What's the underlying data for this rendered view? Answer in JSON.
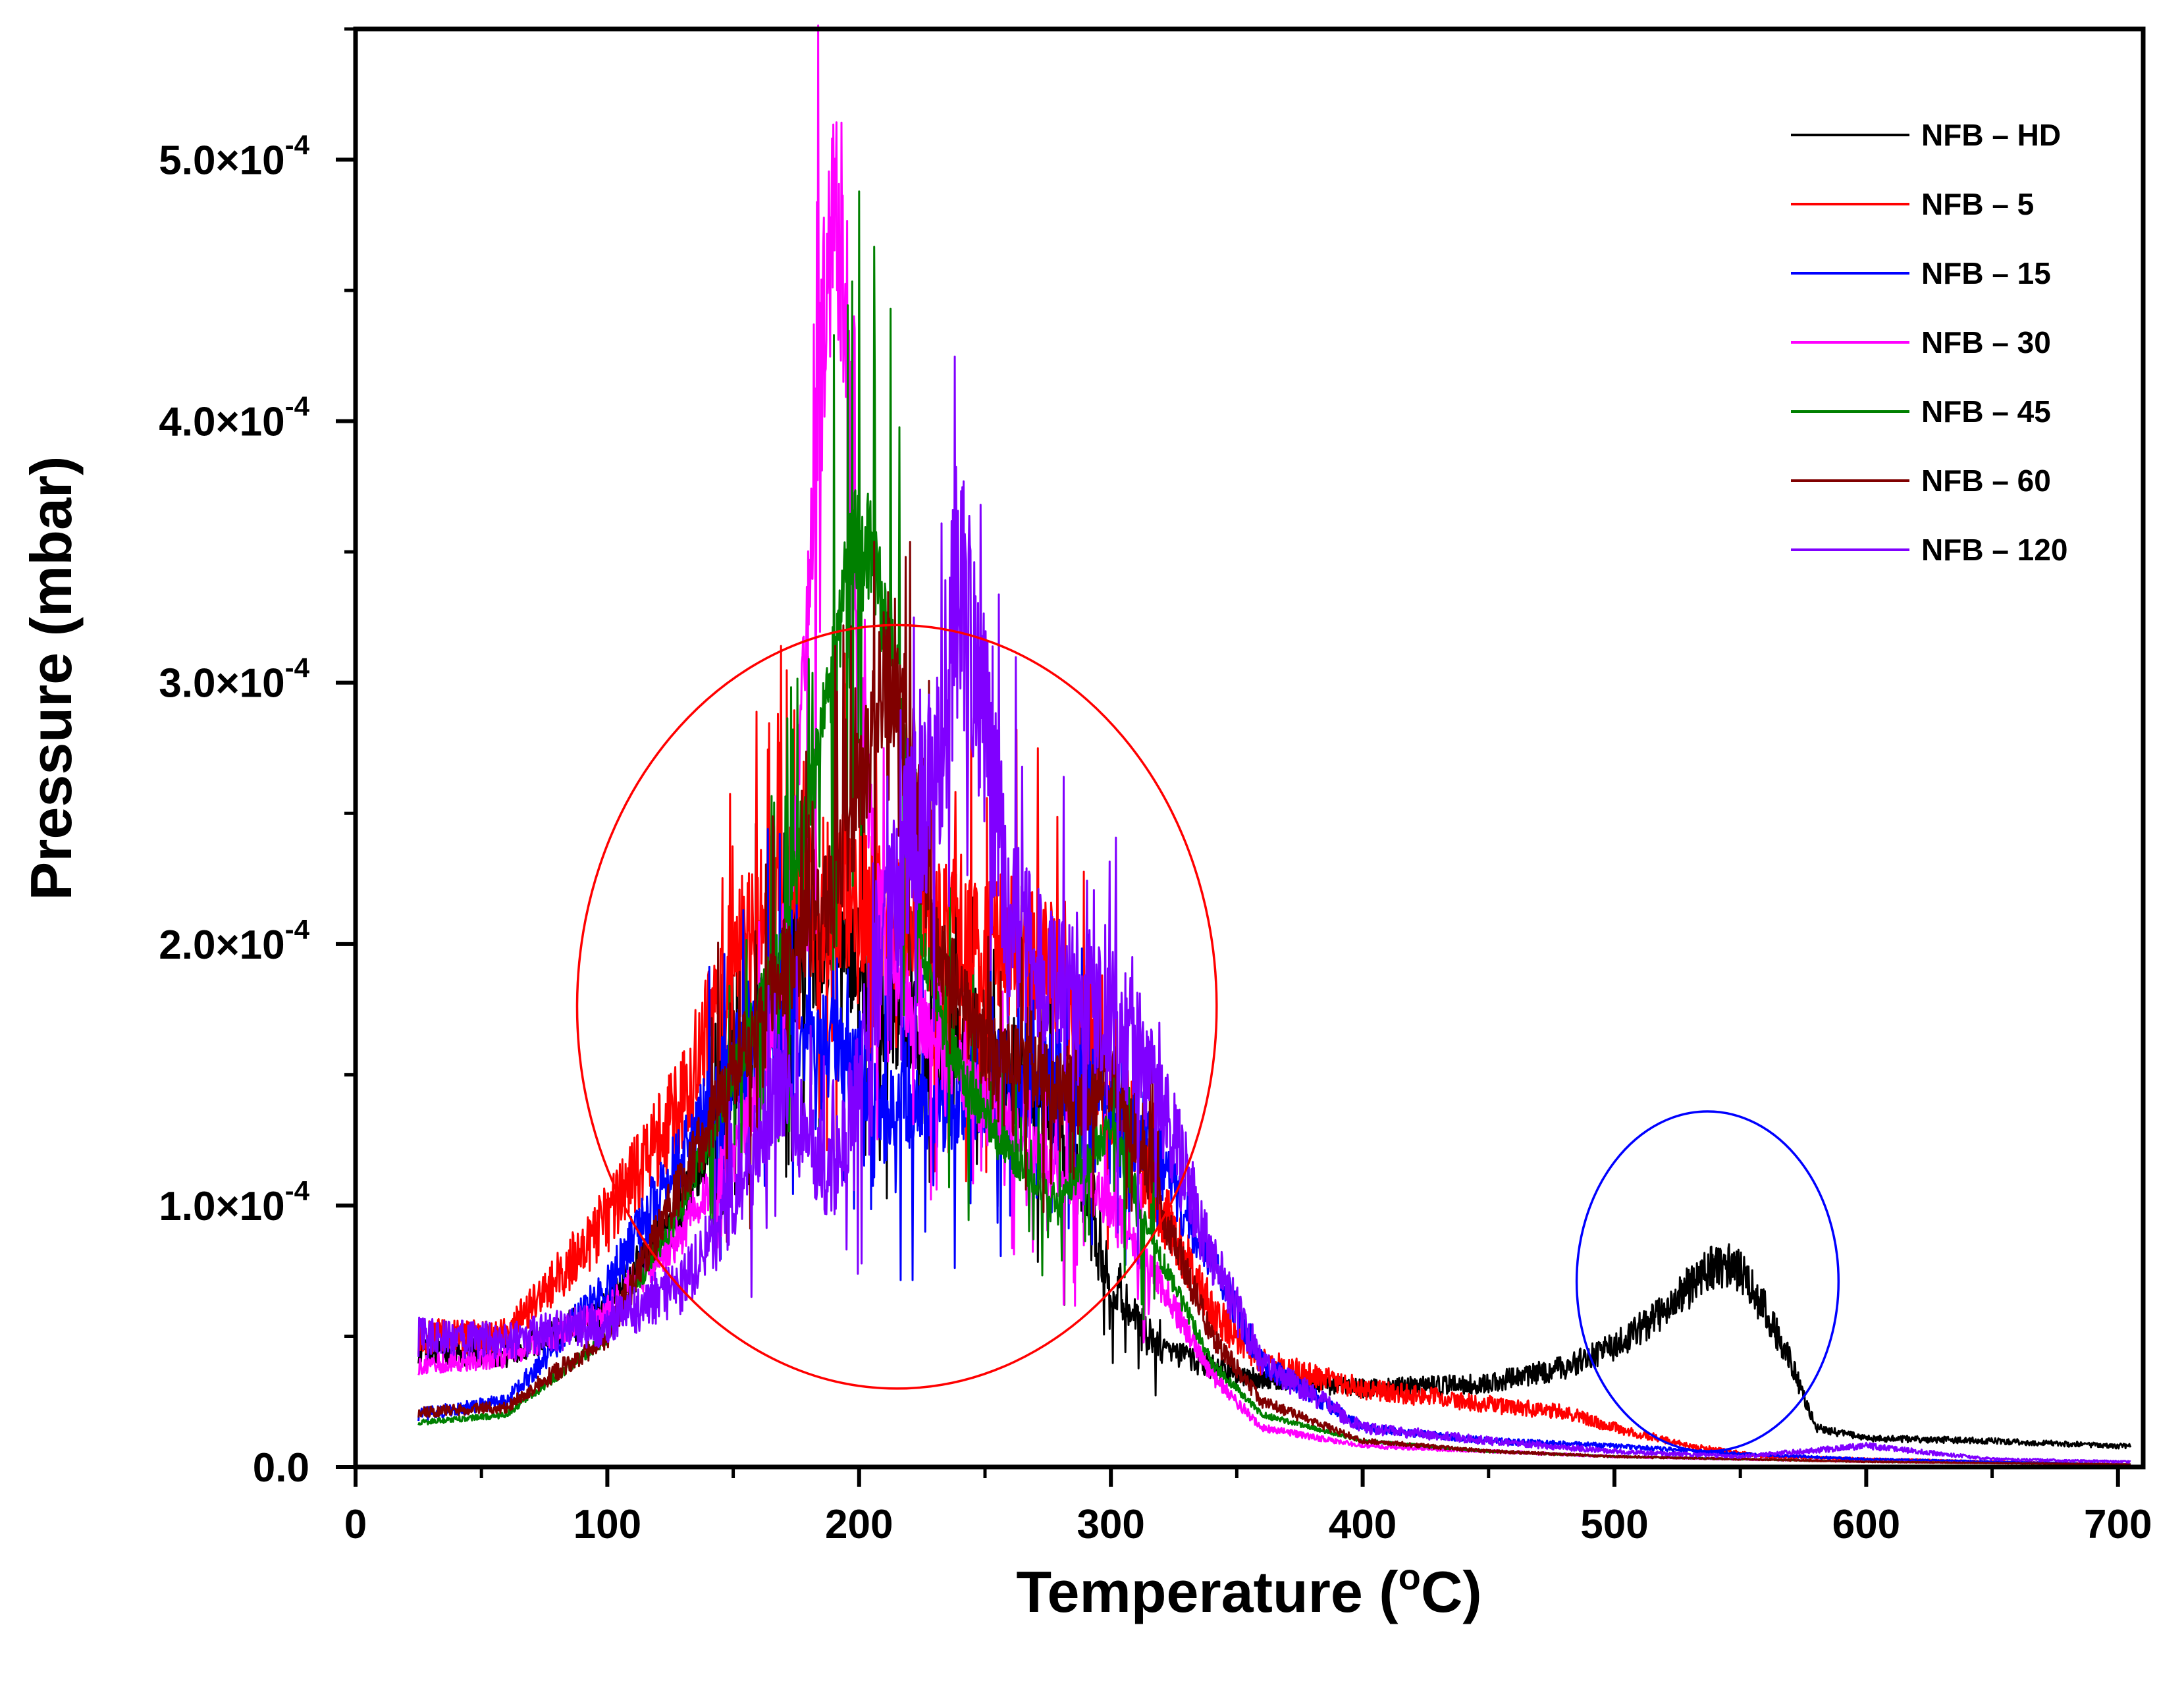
{
  "chart_data": {
    "type": "line",
    "title": "",
    "xlabel": "Temperature (",
    "xlabel_sup": "o",
    "xlabel_unit": "C)",
    "ylabel": "Pressure (mbar)",
    "xlim": [
      0,
      710
    ],
    "ylim": [
      0,
      0.00055
    ],
    "x_ticks": [
      0,
      100,
      200,
      300,
      400,
      500,
      600,
      700
    ],
    "x_tick_labels": [
      "0",
      "100",
      "200",
      "300",
      "400",
      "500",
      "600",
      "700"
    ],
    "y_ticks": [
      0,
      0.0001,
      0.0002,
      0.0003,
      0.0004,
      0.0005
    ],
    "y_tick_labels": [
      {
        "mantissa": "0.0",
        "exponent": ""
      },
      {
        "mantissa": "1.0×10",
        "exponent": "-4"
      },
      {
        "mantissa": "2.0×10",
        "exponent": "-4"
      },
      {
        "mantissa": "3.0×10",
        "exponent": "-4"
      },
      {
        "mantissa": "4.0×10",
        "exponent": "-4"
      },
      {
        "mantissa": "5.0×10",
        "exponent": "-4"
      }
    ],
    "legend_position": "top-right",
    "series": [
      {
        "name": "NFB – HD",
        "color": "#000000",
        "noise": 0.12,
        "x": [
          25,
          60,
          100,
          130,
          150,
          170,
          190,
          200,
          210,
          230,
          260,
          280,
          290,
          300,
          320,
          350,
          400,
          450,
          480,
          500,
          520,
          540,
          550,
          560,
          570,
          580,
          600,
          650,
          700,
          705
        ],
        "y": [
          4.5e-05,
          4.3e-05,
          6e-05,
          0.0001,
          0.00015,
          0.00019,
          0.0002,
          0.000195,
          0.000175,
          0.00016,
          0.00015,
          0.00013,
          0.0001,
          7e-05,
          4.5e-05,
          3.5e-05,
          3e-05,
          3.2e-05,
          3.8e-05,
          4.6e-05,
          6e-05,
          7.8e-05,
          7.5e-05,
          6e-05,
          4e-05,
          1.5e-05,
          1.1e-05,
          1e-05,
          8e-06,
          8e-06
        ]
      },
      {
        "name": "NFB – 5",
        "color": "#ff0000",
        "noise": 0.14,
        "x": [
          25,
          60,
          100,
          130,
          150,
          170,
          190,
          210,
          230,
          260,
          280,
          300,
          320,
          340,
          360,
          400,
          450,
          480,
          500,
          530,
          560,
          600,
          650,
          705
        ],
        "y": [
          5e-05,
          5e-05,
          9.5e-05,
          0.00014,
          0.000195,
          0.00022,
          0.00022,
          0.00021,
          0.000205,
          0.0002,
          0.000185,
          0.00014,
          0.0001,
          6e-05,
          4e-05,
          3e-05,
          2.4e-05,
          2.1e-05,
          1.5e-05,
          8e-06,
          4e-06,
          3e-06,
          2e-06,
          1e-06
        ]
      },
      {
        "name": "NFB – 15",
        "color": "#0000ff",
        "noise": 0.12,
        "x": [
          25,
          60,
          100,
          130,
          150,
          170,
          190,
          210,
          230,
          260,
          280,
          300,
          320,
          340,
          360,
          400,
          450,
          500,
          550,
          600,
          650,
          705
        ],
        "y": [
          2e-05,
          2.5e-05,
          7e-05,
          0.00012,
          0.000155,
          0.00017,
          0.00016,
          0.00014,
          0.000135,
          0.00014,
          0.00015,
          0.00014,
          0.000115,
          8e-05,
          4e-05,
          1.5e-05,
          1e-05,
          8e-06,
          5e-06,
          3e-06,
          2e-06,
          1e-06
        ]
      },
      {
        "name": "NFB – 30",
        "color": "#ff00ff",
        "noise": 0.1,
        "x": [
          25,
          60,
          100,
          130,
          150,
          165,
          175,
          185,
          190,
          195,
          200,
          210,
          230,
          260,
          280,
          290,
          300,
          320,
          340,
          360,
          400,
          450,
          500,
          550,
          600,
          650,
          705
        ],
        "y": [
          3.9e-05,
          4.2e-05,
          6e-05,
          9e-05,
          0.00012,
          0.00016,
          0.00025,
          0.00043,
          0.00048,
          0.00044,
          0.0003,
          0.0002,
          0.00016,
          0.00013,
          0.00011,
          0.00011,
          0.0001,
          7e-05,
          3.5e-05,
          1.5e-05,
          8e-06,
          6e-06,
          4e-06,
          3e-06,
          2e-06,
          1.5e-06,
          1e-06
        ]
      },
      {
        "name": "NFB – 45",
        "color": "#008000",
        "noise": 0.06,
        "x": [
          25,
          60,
          100,
          130,
          150,
          170,
          185,
          195,
          200,
          205,
          215,
          225,
          240,
          260,
          280,
          300,
          320,
          340,
          360,
          400,
          450,
          500,
          550,
          600,
          650,
          705
        ],
        "y": [
          1.7e-05,
          2e-05,
          5e-05,
          0.0001,
          0.00015,
          0.0002,
          0.00028,
          0.00034,
          0.00036,
          0.00035,
          0.0003,
          0.0002,
          0.00015,
          0.00012,
          0.0001,
          0.00013,
          8e-05,
          4e-05,
          2e-05,
          1e-05,
          6e-06,
          4e-06,
          3e-06,
          2e-06,
          1.5e-06,
          1e-06
        ]
      },
      {
        "name": "NFB – 60",
        "color": "#800000",
        "noise": 0.1,
        "x": [
          25,
          60,
          100,
          130,
          150,
          170,
          190,
          200,
          210,
          220,
          230,
          250,
          270,
          290,
          300,
          320,
          340,
          360,
          400,
          450,
          500,
          550,
          600,
          650,
          705
        ],
        "y": [
          2.1e-05,
          2.3e-05,
          5e-05,
          0.00011,
          0.00015,
          0.00019,
          0.00022,
          0.00026,
          0.0003,
          0.00028,
          0.0002,
          0.00016,
          0.00015,
          0.00014,
          0.00015,
          0.0001,
          5e-05,
          2.5e-05,
          1e-05,
          6e-06,
          4e-06,
          3e-06,
          2e-06,
          1.5e-06,
          1e-06
        ]
      },
      {
        "name": "NFB – 120",
        "color": "#8000ff",
        "noise": 0.16,
        "x": [
          25,
          60,
          100,
          130,
          150,
          170,
          180,
          190,
          200,
          210,
          220,
          230,
          240,
          250,
          260,
          280,
          300,
          320,
          340,
          360,
          400,
          450,
          500,
          550,
          600,
          650,
          705
        ],
        "y": [
          5e-05,
          4.8e-05,
          5.5e-05,
          7e-05,
          0.0001,
          0.00015,
          0.00012,
          0.00011,
          0.00015,
          0.0002,
          0.00024,
          0.00026,
          0.00034,
          0.00028,
          0.00021,
          0.00018,
          0.000175,
          0.00014,
          8e-05,
          4e-05,
          1.5e-05,
          1e-05,
          6e-06,
          4e-06,
          8e-06,
          3e-06,
          2e-06
        ]
      }
    ],
    "annotations": [
      {
        "type": "ellipse",
        "color": "#ff0000",
        "cx": 215,
        "cy": 0.000176,
        "rx": 127,
        "ry": 0.000146
      },
      {
        "type": "ellipse",
        "color": "#0000ff",
        "cx": 537,
        "cy": 7.1e-05,
        "rx": 52,
        "ry": 6.5e-05
      }
    ]
  }
}
